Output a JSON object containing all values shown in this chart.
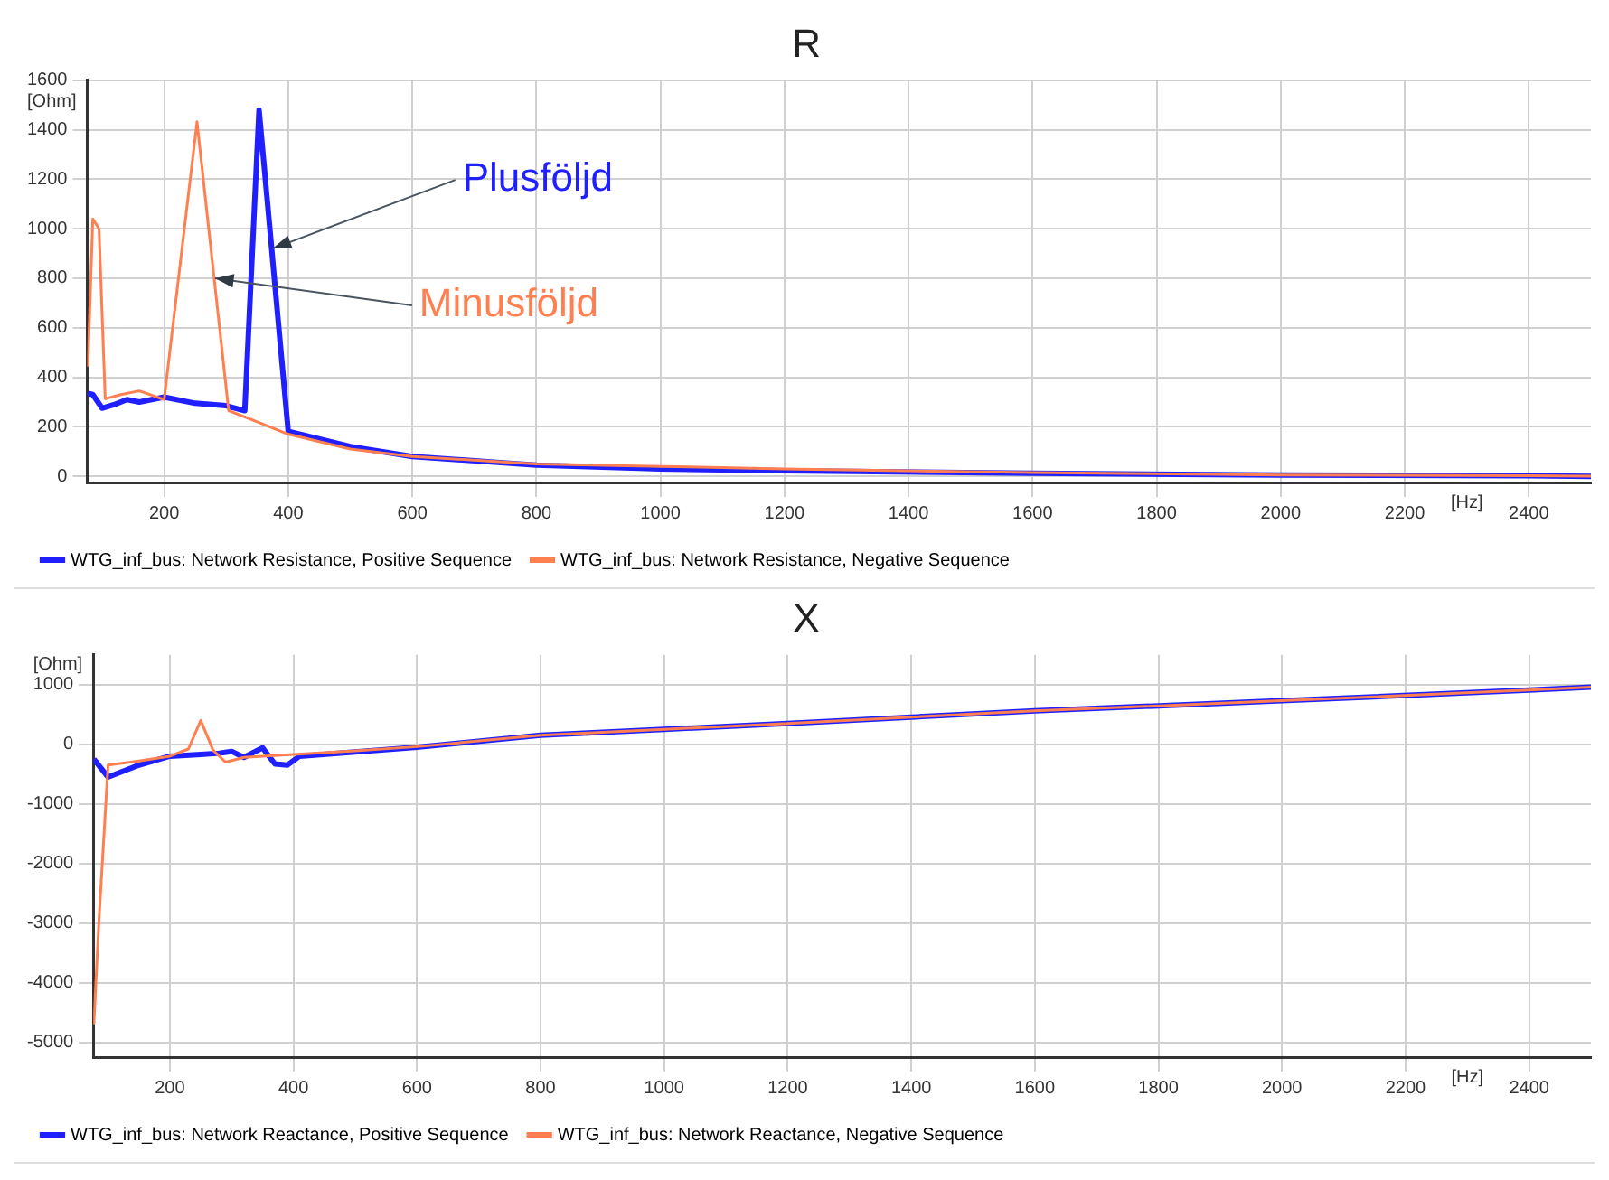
{
  "chart_data": [
    {
      "type": "line",
      "title": "R",
      "xlabel": "[Hz]",
      "ylabel": "[Ohm]",
      "xlim": [
        76,
        2500
      ],
      "ylim": [
        -25,
        1600
      ],
      "xticks": [
        200,
        400,
        600,
        800,
        1000,
        1200,
        1400,
        1600,
        1800,
        2000,
        2200,
        2400
      ],
      "yticks": [
        0,
        200,
        400,
        600,
        800,
        1000,
        1200,
        1400,
        1600
      ],
      "grid": true,
      "legend": "bottom",
      "annotations": [
        {
          "text": "Plusföljd",
          "x": 375,
          "y": 920
        },
        {
          "text": "Minusföljd",
          "x": 282,
          "y": 800
        }
      ],
      "series": [
        {
          "name": "WTG_inf_bus: Network Resistance, Positive Sequence",
          "color": "#1f1fff",
          "x": [
            77,
            85,
            100,
            120,
            140,
            160,
            200,
            250,
            300,
            330,
            353,
            400,
            500,
            600,
            800,
            1000,
            1200,
            1600,
            2000,
            2400,
            2500
          ],
          "values": [
            335,
            330,
            275,
            290,
            310,
            300,
            320,
            295,
            285,
            265,
            1480,
            182,
            120,
            80,
            45,
            30,
            22,
            12,
            5,
            2,
            0
          ]
        },
        {
          "name": "WTG_inf_bus: Network Resistance, Negative Sequence",
          "color": "#ff7f50",
          "x": [
            77,
            85,
            95,
            105,
            130,
            160,
            200,
            253,
            304,
            350,
            400,
            500,
            600,
            800,
            1000,
            1200,
            1600,
            2000,
            2400,
            2500
          ],
          "values": [
            443,
            1040,
            1000,
            313,
            330,
            345,
            310,
            1432,
            265,
            220,
            170,
            110,
            80,
            50,
            40,
            30,
            15,
            5,
            2,
            1
          ]
        }
      ]
    },
    {
      "type": "line",
      "title": "X",
      "xlabel": "[Hz]",
      "ylabel": "[Ohm]",
      "xlim": [
        76,
        2500
      ],
      "ylim": [
        -5250,
        1500
      ],
      "xticks": [
        200,
        400,
        600,
        800,
        1000,
        1200,
        1400,
        1600,
        1800,
        2000,
        2200,
        2400
      ],
      "yticks": [
        -5000,
        -4000,
        -3000,
        -2000,
        -1000,
        0,
        1000
      ],
      "grid": true,
      "legend": "bottom",
      "series": [
        {
          "name": "WTG_inf_bus: Network Reactance, Positive Sequence",
          "color": "#1f1fff",
          "x": [
            77,
            100,
            150,
            200,
            250,
            280,
            300,
            320,
            350,
            370,
            390,
            410,
            500,
            600,
            800,
            1000,
            1200,
            1600,
            2000,
            2400,
            2500
          ],
          "values": [
            -250,
            -550,
            -350,
            -200,
            -170,
            -150,
            -120,
            -220,
            -60,
            -330,
            -350,
            -200,
            -130,
            -50,
            150,
            250,
            350,
            560,
            730,
            910,
            960
          ]
        },
        {
          "name": "WTG_inf_bus: Network Reactance, Negative Sequence",
          "color": "#ff7f50",
          "x": [
            77,
            85,
            100,
            150,
            200,
            230,
            250,
            270,
            290,
            320,
            350,
            400,
            500,
            600,
            800,
            1000,
            1200,
            1600,
            2000,
            2400,
            2500
          ],
          "values": [
            -4700,
            -3000,
            -350,
            -280,
            -200,
            -80,
            400,
            -100,
            -300,
            -220,
            -200,
            -170,
            -110,
            -40,
            150,
            250,
            350,
            560,
            730,
            910,
            960
          ]
        }
      ]
    }
  ]
}
